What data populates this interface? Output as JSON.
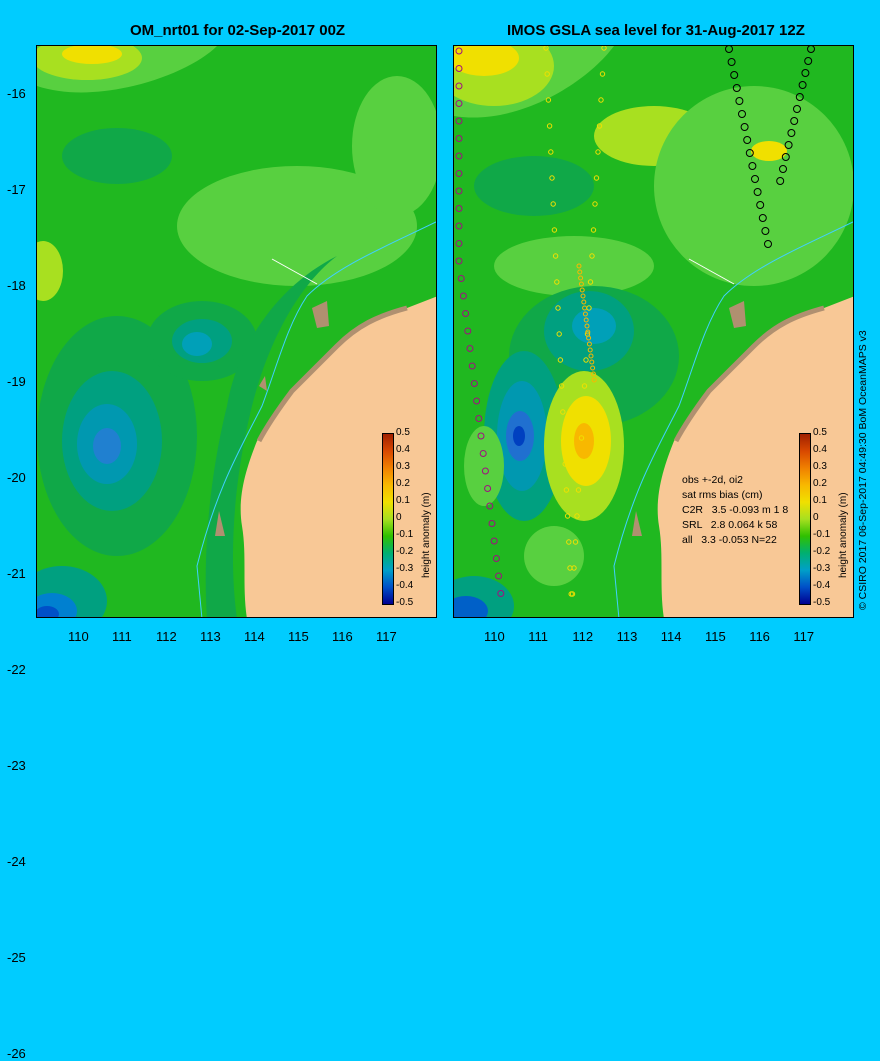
{
  "left_panel": {
    "title": "OM_nrt01 for 02-Sep-2017 00Z",
    "x_ticks": [
      "110",
      "111",
      "112",
      "113",
      "114",
      "115",
      "116",
      "117"
    ],
    "y_ticks": [
      "-16",
      "-17",
      "-18",
      "-19",
      "-20",
      "-21",
      "-22",
      "-23",
      "-24",
      "-25",
      "-26"
    ]
  },
  "right_panel": {
    "title": "IMOS GSLA sea level  for 31-Aug-2017 12Z",
    "x_ticks": [
      "110",
      "111",
      "112",
      "113",
      "114",
      "115",
      "116",
      "117"
    ],
    "stats_lines": [
      "obs +-2d, oi2",
      "sat rms bias (cm)",
      "C2R   3.5 -0.093 m 1 8",
      "SRL   2.8 0.064 k 58",
      "all   3.3 -0.053 N=22"
    ]
  },
  "colorbar": {
    "title": "height anomaly (m)",
    "labels": [
      "0.5",
      "0.4",
      "0.3",
      "0.2",
      "0.1",
      "0",
      "-0.1",
      "-0.2",
      "-0.3",
      "-0.4",
      "-0.5"
    ],
    "colors": [
      "#a02000",
      "#d84800",
      "#f08000",
      "#f8b800",
      "#f0e000",
      "#a8e020",
      "#30c000",
      "#00b070",
      "#00a0c8",
      "#0050c8",
      "#000090"
    ]
  },
  "credit": "© CSIRO 2017  06-Sep-2017 04:49:30 BoM OceanMAPS v3",
  "colors": {
    "background": "#00ccff",
    "land": "#f8c896",
    "ocean_base": "#22bb22"
  }
}
